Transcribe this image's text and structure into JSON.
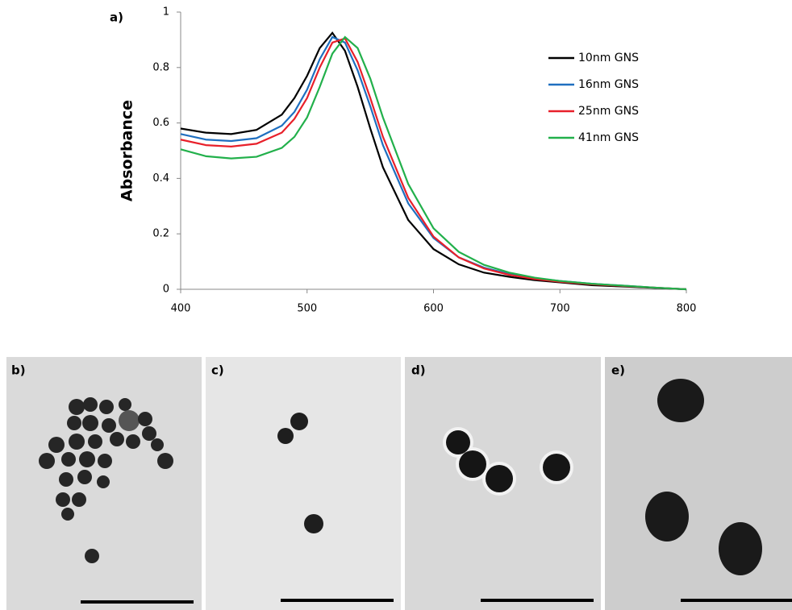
{
  "chart_data": {
    "type": "line",
    "panel_label": "a)",
    "ylabel": "Absorbance",
    "x": [
      400,
      420,
      440,
      460,
      480,
      490,
      500,
      510,
      520,
      530,
      540,
      550,
      560,
      580,
      600,
      620,
      640,
      660,
      680,
      700,
      725,
      750,
      775,
      800
    ],
    "series": [
      {
        "name": "10nm GNS",
        "color": "#000000",
        "values": [
          0.58,
          0.565,
          0.56,
          0.575,
          0.63,
          0.69,
          0.77,
          0.87,
          0.925,
          0.86,
          0.73,
          0.58,
          0.44,
          0.25,
          0.145,
          0.09,
          0.06,
          0.045,
          0.033,
          0.025,
          0.015,
          0.01,
          0.005,
          0
        ]
      },
      {
        "name": "16nm GNS",
        "color": "#1f6fc0",
        "values": [
          0.56,
          0.54,
          0.535,
          0.545,
          0.59,
          0.64,
          0.72,
          0.83,
          0.91,
          0.89,
          0.79,
          0.66,
          0.52,
          0.31,
          0.185,
          0.115,
          0.078,
          0.055,
          0.04,
          0.03,
          0.02,
          0.013,
          0.006,
          0
        ]
      },
      {
        "name": "25nm GNS",
        "color": "#e8202a",
        "values": [
          0.54,
          0.52,
          0.515,
          0.525,
          0.565,
          0.615,
          0.69,
          0.8,
          0.89,
          0.905,
          0.82,
          0.69,
          0.55,
          0.33,
          0.19,
          0.115,
          0.075,
          0.052,
          0.037,
          0.027,
          0.018,
          0.012,
          0.006,
          0
        ]
      },
      {
        "name": "41nm GNS",
        "color": "#22b04b",
        "values": [
          0.505,
          0.48,
          0.472,
          0.478,
          0.51,
          0.55,
          0.62,
          0.73,
          0.85,
          0.91,
          0.87,
          0.76,
          0.62,
          0.38,
          0.22,
          0.135,
          0.088,
          0.06,
          0.042,
          0.03,
          0.02,
          0.013,
          0.006,
          0
        ]
      }
    ],
    "xlim": [
      400,
      800
    ],
    "xticks": [
      400,
      500,
      600,
      700,
      800
    ],
    "ylim": [
      0,
      1
    ],
    "yticks": [
      0,
      0.2,
      0.4,
      0.6,
      0.8,
      1
    ],
    "grid": false,
    "legend": "upper right"
  },
  "images": [
    {
      "label": "b)"
    },
    {
      "label": "c)"
    },
    {
      "label": "d)"
    },
    {
      "label": "e)"
    }
  ]
}
